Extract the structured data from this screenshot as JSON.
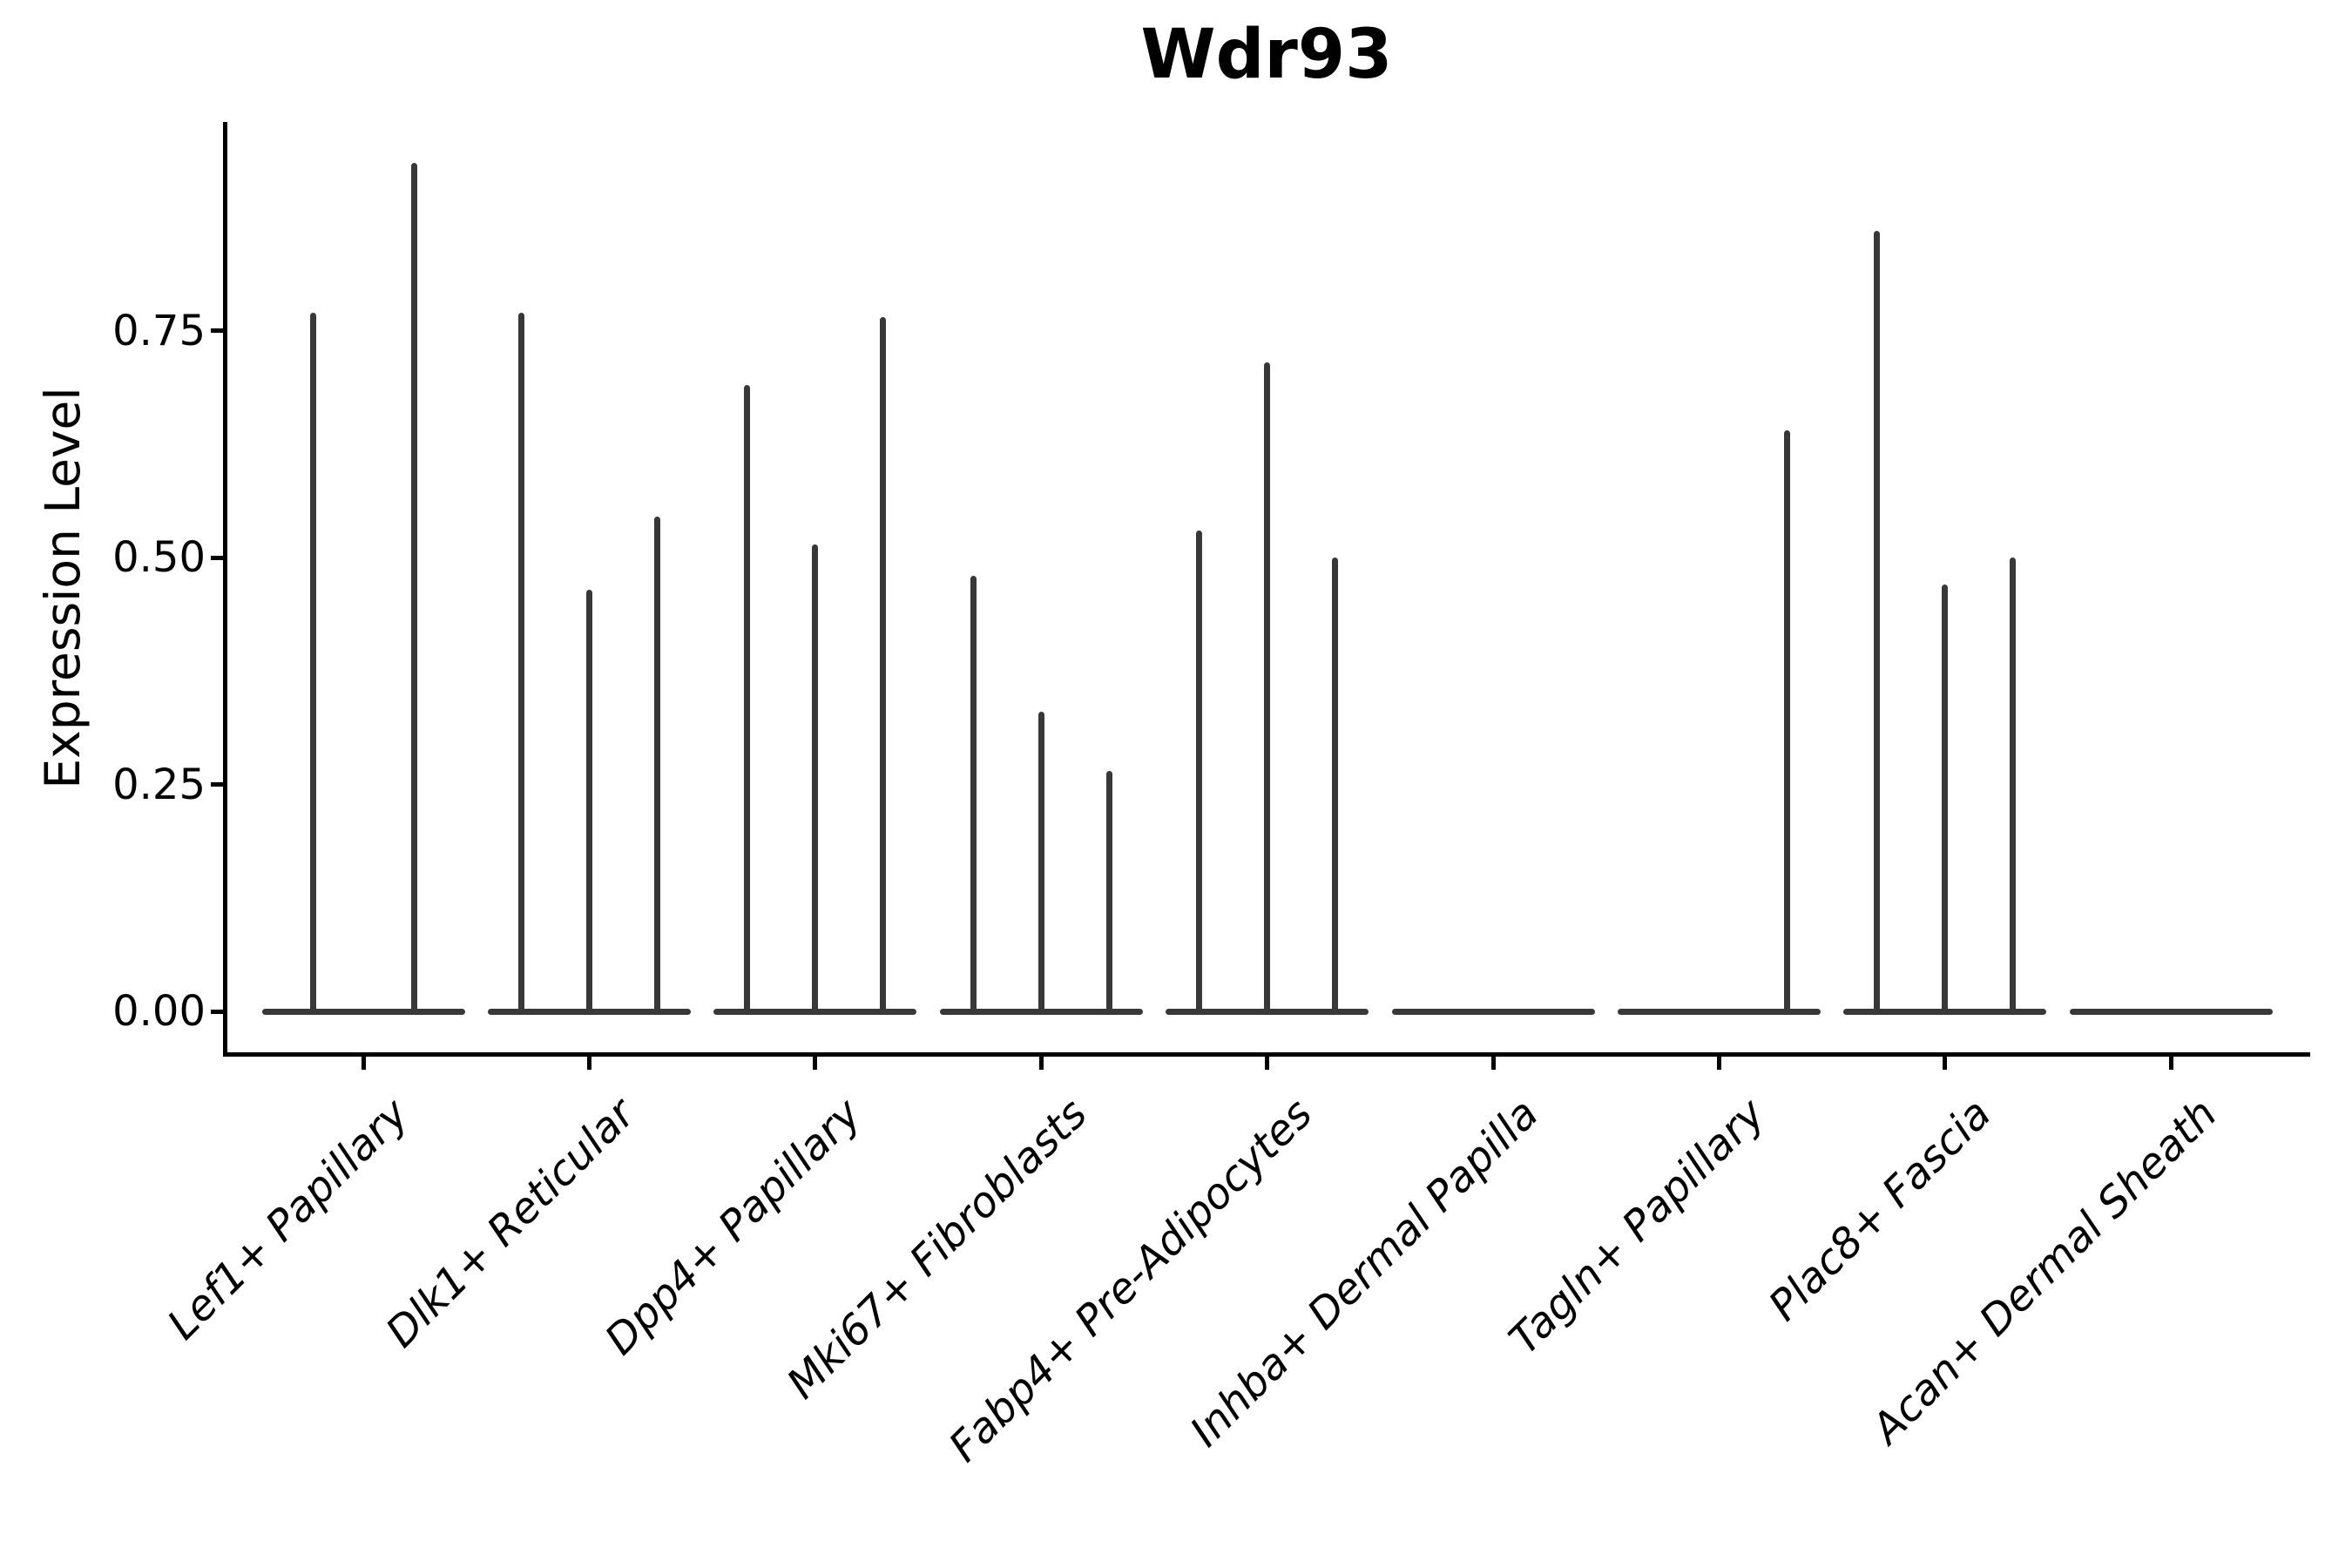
{
  "chart_data": {
    "type": "violin",
    "title": "Wdr93",
    "ylabel": "Expression Level",
    "xlabel": "",
    "ylim": [
      -0.05,
      0.98
    ],
    "grid": false,
    "legend": "none",
    "y_ticks": [
      {
        "label": "0.00",
        "value": 0.0
      },
      {
        "label": "0.25",
        "value": 0.25
      },
      {
        "label": "0.50",
        "value": 0.5
      },
      {
        "label": "0.75",
        "value": 0.75
      }
    ],
    "style_notes": "flat zero-width violins at baseline with narrow expression spikes; dark gray #383838 strokes; left and bottom black spines only; italic 45-degree x labels",
    "categories": [
      {
        "label": "Lef1+ Papillary",
        "spikes": [
          {
            "dx": -58,
            "value": 0.77
          },
          {
            "dx": 58,
            "value": 0.935
          }
        ]
      },
      {
        "label": "Dlk1+ Reticular",
        "spikes": [
          {
            "dx": -78,
            "value": 0.77
          },
          {
            "dx": 0,
            "value": 0.465
          },
          {
            "dx": 78,
            "value": 0.545
          }
        ]
      },
      {
        "label": "Dpp4+ Papillary",
        "spikes": [
          {
            "dx": -78,
            "value": 0.69
          },
          {
            "dx": 0,
            "value": 0.515
          },
          {
            "dx": 78,
            "value": 0.765
          }
        ]
      },
      {
        "label": "Mki67+ Fibroblasts",
        "spikes": [
          {
            "dx": -78,
            "value": 0.48
          },
          {
            "dx": 0,
            "value": 0.33
          },
          {
            "dx": 78,
            "value": 0.265
          }
        ]
      },
      {
        "label": "Fabp4+ Pre-Adipocytes",
        "spikes": [
          {
            "dx": -78,
            "value": 0.53
          },
          {
            "dx": 0,
            "value": 0.715
          },
          {
            "dx": 78,
            "value": 0.5
          }
        ]
      },
      {
        "label": "Inhba+ Dermal Papilla",
        "spikes": []
      },
      {
        "label": "Tagln+ Papillary",
        "spikes": [
          {
            "dx": 78,
            "value": 0.64
          }
        ]
      },
      {
        "label": "Plac8+ Fascia",
        "spikes": [
          {
            "dx": -78,
            "value": 0.86
          },
          {
            "dx": 0,
            "value": 0.47
          },
          {
            "dx": 78,
            "value": 0.5
          }
        ]
      },
      {
        "label": "Acan+ Dermal Sheath",
        "spikes": []
      }
    ],
    "colors": {
      "violin_stroke": "#383838",
      "axis": "#000000",
      "background": "#ffffff"
    }
  }
}
